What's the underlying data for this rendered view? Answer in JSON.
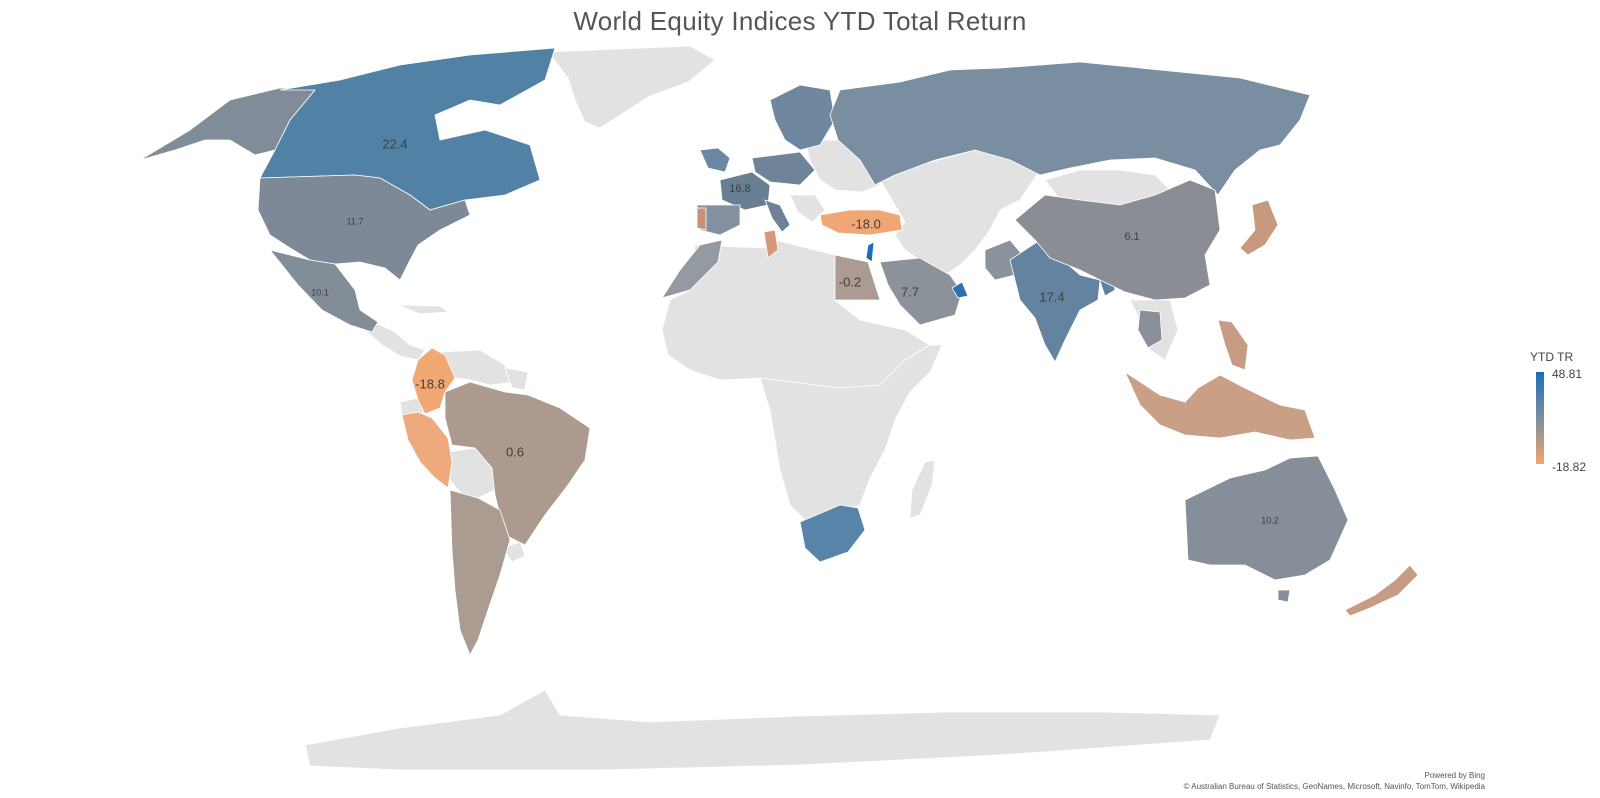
{
  "title": "World Equity Indices YTD Total Return",
  "legend": {
    "title": "YTD TR",
    "max": "48.81",
    "min": "-18.82"
  },
  "colors": {
    "land": "#e2e2e2",
    "high": "#1a6fb8",
    "mid": "#7b8fa0",
    "low": "#f0a56e"
  },
  "attribution": {
    "line1": "Powered by Bing",
    "line2": "© Australian Bureau of Statistics, GeoNames, Microsoft, Navinfo, TomTom, Wikipedia"
  },
  "labels": {
    "canada": "22.4",
    "usa": "11.7",
    "mexico": "10.1",
    "colombia": "-18.8",
    "brazil": "0.6",
    "france": "16.8",
    "turkey": "-18.0",
    "egypt": "-0.2",
    "saudi": "7.7",
    "india": "17.4",
    "china": "6.1",
    "australia": "10.2"
  }
}
